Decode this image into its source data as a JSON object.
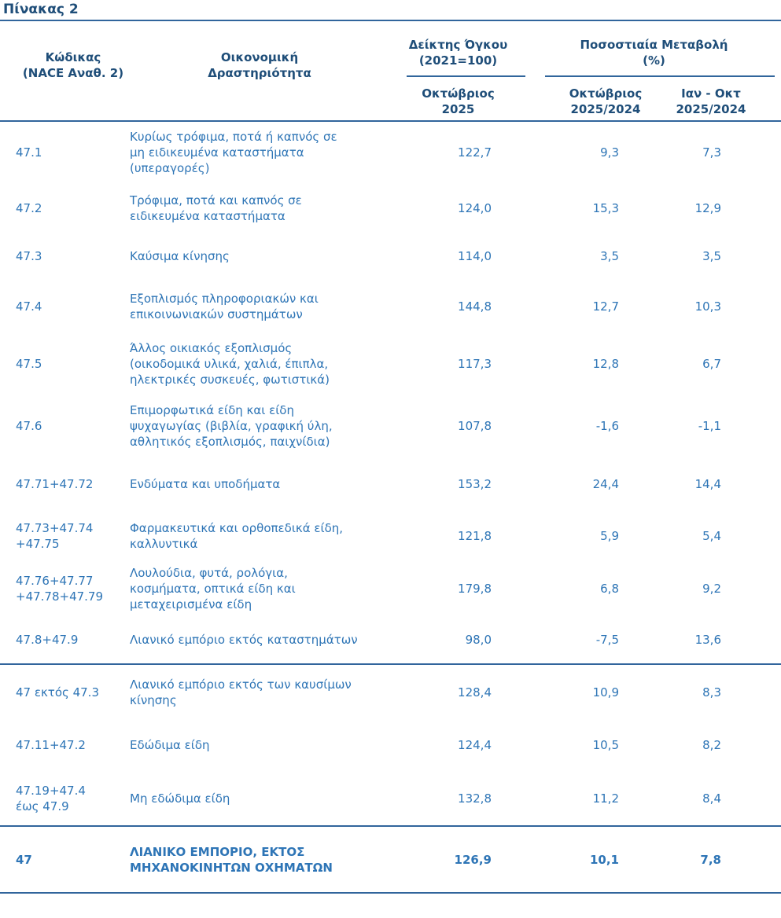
{
  "title": "Πίνακας 2",
  "colors": {
    "heading_text": "#1F4E79",
    "body_text": "#2E75B6",
    "rule": "#31659C"
  },
  "table": {
    "col_headers": {
      "code": "Κώδικας\n(NACE Αναθ. 2)",
      "activity": "Οικονομική\nΔραστηριότητα",
      "volume_group": "Δείκτης Όγκου\n(2021=100)",
      "change_group": "Ποσοστιαία Μεταβολή\n(%)",
      "volume_sub": "Οκτώβριος\n2025",
      "change_sub_month": "Οκτώβριος\n2025/2024",
      "change_sub_ytd": "Ιαν - Οκτ\n2025/2024"
    },
    "rows": [
      {
        "code": "47.1",
        "activity": "Κυρίως τρόφιμα, ποτά ή καπνός σε\nμη ειδικευμένα καταστήματα\n(υπεραγορές)",
        "volume": "122,7",
        "change_month": "9,3",
        "change_ytd": "7,3"
      },
      {
        "code": "47.2",
        "activity": "Τρόφιμα, ποτά και καπνός σε\nειδικευμένα καταστήματα",
        "volume": "124,0",
        "change_month": "15,3",
        "change_ytd": "12,9"
      },
      {
        "code": "47.3",
        "activity": "Καύσιμα κίνησης",
        "volume": "114,0",
        "change_month": "3,5",
        "change_ytd": "3,5"
      },
      {
        "code": "47.4",
        "activity": "Εξοπλισμός πληροφοριακών και\nεπικοινωνιακών συστημάτων",
        "volume": "144,8",
        "change_month": "12,7",
        "change_ytd": "10,3"
      },
      {
        "code": "47.5",
        "activity": "Άλλος οικιακός εξοπλισμός\n(οικοδομικά υλικά, χαλιά, έπιπλα,\nηλεκτρικές συσκευές, φωτιστικά)",
        "volume": "117,3",
        "change_month": "12,8",
        "change_ytd": "6,7"
      },
      {
        "code": "47.6",
        "activity": "Επιμορφωτικά είδη και είδη\nψυχαγωγίας  (βιβλία, γραφική ύλη,\nαθλητικός εξοπλισμός, παιχνίδια)",
        "volume": "107,8",
        "change_month": "-1,6",
        "change_ytd": "-1,1"
      },
      {
        "code": "47.71+47.72",
        "activity": "Ενδύματα και υποδήματα",
        "volume": "153,2",
        "change_month": "24,4",
        "change_ytd": "14,4"
      },
      {
        "code": "47.73+47.74\n+47.75",
        "activity": "Φαρμακευτικά και ορθοπεδικά είδη,\nκαλλυντικά",
        "volume": "121,8",
        "change_month": "5,9",
        "change_ytd": "5,4"
      },
      {
        "code": "47.76+47.77\n+47.78+47.79",
        "activity": "Λουλούδια, φυτά, ρολόγια,\nκοσμήματα, οπτικά είδη και\nμεταχειρισμένα είδη",
        "volume": "179,8",
        "change_month": "6,8",
        "change_ytd": "9,2"
      },
      {
        "code": "47.8+47.9",
        "activity": "Λιανικό εμπόριο εκτός καταστημάτων",
        "volume": "98,0",
        "change_month": "-7,5",
        "change_ytd": "13,6"
      },
      {
        "code": "47 εκτός 47.3",
        "activity": "Λιανικό εμπόριο εκτός των καυσίμων\nκίνησης",
        "volume": "128,4",
        "change_month": "10,9",
        "change_ytd": "8,3"
      },
      {
        "code": "47.11+47.2",
        "activity": "Εδώδιμα είδη",
        "volume": "124,4",
        "change_month": "10,5",
        "change_ytd": "8,2"
      },
      {
        "code": "47.19+47.4\nέως 47.9",
        "activity": "Μη εδώδιμα είδη",
        "volume": "132,8",
        "change_month": "11,2",
        "change_ytd": "8,4"
      },
      {
        "code": "47",
        "activity": "ΛΙΑΝΙΚΟ ΕΜΠΟΡΙΟ, ΕΚΤΟΣ\nΜΗΧΑΝΟΚΙΝΗΤΩΝ ΟΧΗΜΑΤΩΝ",
        "volume": "126,9",
        "change_month": "10,1",
        "change_ytd": "7,8"
      }
    ]
  }
}
